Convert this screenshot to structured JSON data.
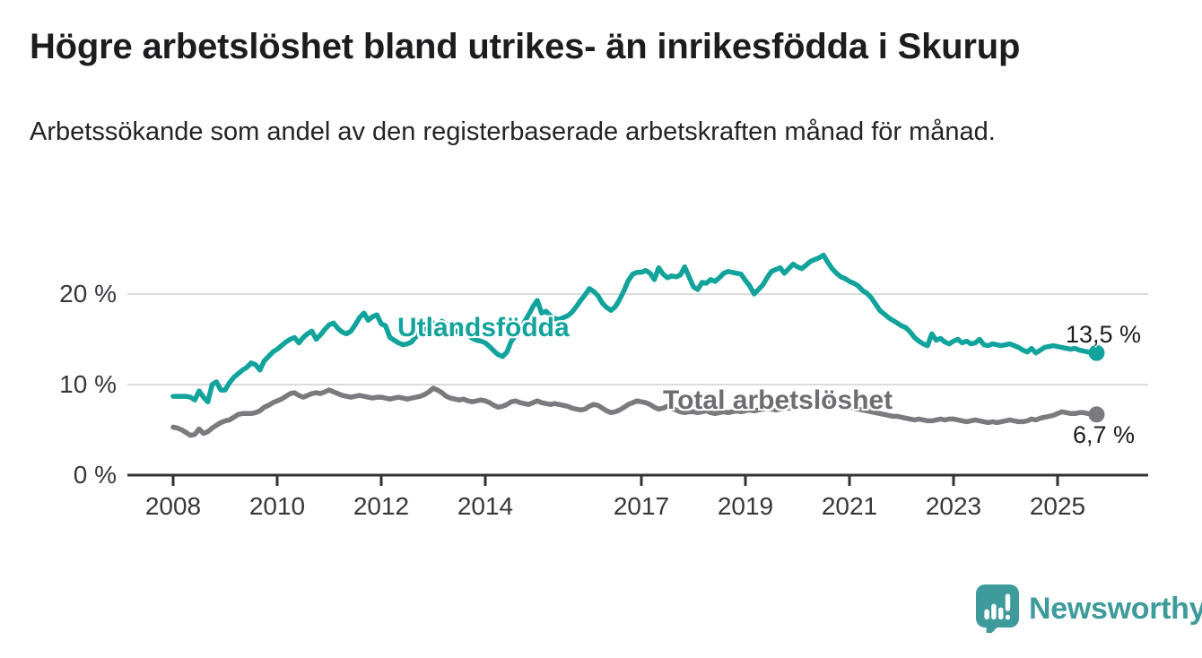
{
  "header": {
    "title": "Högre arbetslöshet bland utrikes- än inrikesfödda i Skurup",
    "subtitle": "Arbetssökande som andel av den registerbaserade arbetskraften månad för månad."
  },
  "logo": {
    "text": "Newsworthy",
    "icon": "newsworthy-speech-bubble-bar-chart-icon",
    "color": "#3f9b9b"
  },
  "chart_data": {
    "type": "line",
    "title": "Högre arbetslöshet bland utrikes- än inrikesfödda i Skurup",
    "subtitle": "Arbetssökande som andel av den registerbaserade arbetskraften månad för månad.",
    "frequency": "monthly",
    "start": "2008-01",
    "end": "2025-10",
    "grid": "horizontal",
    "legend_position": "inline-labels",
    "x_axis": {
      "unit": "year",
      "range": [
        2007.1,
        2026.8
      ],
      "ticks": [
        "2008",
        "2010",
        "2012",
        "2014",
        "2017",
        "2019",
        "2021",
        "2023",
        "2025"
      ]
    },
    "y_axis": {
      "unit": "percent",
      "range": [
        0,
        25
      ],
      "ticks": [
        {
          "value": 0,
          "label": "0 %"
        },
        {
          "value": 10,
          "label": "10 %"
        },
        {
          "value": 20,
          "label": "20 %"
        }
      ]
    },
    "colors": {
      "grid": "#dcdcdc",
      "axis": "#323236",
      "tick_text": "#37373b"
    },
    "series": [
      {
        "name": "Utlandsfödda",
        "color": "#12a39c",
        "end_label": "13,5 %",
        "end_value": 13.5,
        "values": [
          8.7,
          8.7,
          8.7,
          8.7,
          8.6,
          8.3,
          9.3,
          8.6,
          8.1,
          10.0,
          10.3,
          9.4,
          9.4,
          10.2,
          10.8,
          11.2,
          11.6,
          11.9,
          12.4,
          12.2,
          11.6,
          12.6,
          13.1,
          13.6,
          13.9,
          14.3,
          14.7,
          15.0,
          15.2,
          14.6,
          15.2,
          15.6,
          15.9,
          15.0,
          15.5,
          16.1,
          16.6,
          16.8,
          16.2,
          15.8,
          15.6,
          15.9,
          16.6,
          17.4,
          17.9,
          17.1,
          17.5,
          17.7,
          16.7,
          16.5,
          15.2,
          14.9,
          14.6,
          14.4,
          14.5,
          14.7,
          15.3,
          15.8,
          16.1,
          16.4,
          16.8,
          16.6,
          17.0,
          16.7,
          16.3,
          16.0,
          15.7,
          15.9,
          15.5,
          15.1,
          14.9,
          14.8,
          14.6,
          14.2,
          13.7,
          13.3,
          13.1,
          13.6,
          14.8,
          15.4,
          16.1,
          16.9,
          17.7,
          18.6,
          19.3,
          17.9,
          18.1,
          17.6,
          17.3,
          17.2,
          17.4,
          17.6,
          18.0,
          18.6,
          19.3,
          19.9,
          20.6,
          20.3,
          19.8,
          19.0,
          18.5,
          18.2,
          18.6,
          19.4,
          20.4,
          21.5,
          22.2,
          22.4,
          22.4,
          22.6,
          22.3,
          21.6,
          22.9,
          22.2,
          21.8,
          22.0,
          21.9,
          22.1,
          23.0,
          21.9,
          20.8,
          20.5,
          21.3,
          21.2,
          21.6,
          21.4,
          21.8,
          22.3,
          22.5,
          22.4,
          22.3,
          22.2,
          21.5,
          20.9,
          20.0,
          20.5,
          21.0,
          21.8,
          22.5,
          22.7,
          22.9,
          22.3,
          22.8,
          23.3,
          23.0,
          22.8,
          23.2,
          23.6,
          23.8,
          24.0,
          24.3,
          23.5,
          22.8,
          22.3,
          21.9,
          21.7,
          21.4,
          21.2,
          20.9,
          20.4,
          20.1,
          19.6,
          18.9,
          18.2,
          17.8,
          17.4,
          17.1,
          16.8,
          16.5,
          16.3,
          15.8,
          15.2,
          14.8,
          14.5,
          14.3,
          15.6,
          14.9,
          15.1,
          14.7,
          14.5,
          14.8,
          15.0,
          14.6,
          14.8,
          14.5,
          14.6,
          15.0,
          14.4,
          14.3,
          14.5,
          14.4,
          14.3,
          14.4,
          14.5,
          14.3,
          14.1,
          13.8,
          13.6,
          14.0,
          13.5,
          13.8,
          14.1,
          14.2,
          14.3,
          14.2,
          14.1,
          14.0,
          13.9,
          14.0,
          13.8,
          13.7,
          13.6,
          13.5,
          13.5
        ]
      },
      {
        "name": "Total arbetslöshet",
        "color": "#7a7a7f",
        "end_label": "6,7 %",
        "end_value": 6.7,
        "values": [
          5.3,
          5.2,
          5.0,
          4.7,
          4.4,
          4.5,
          5.1,
          4.6,
          4.8,
          5.2,
          5.5,
          5.8,
          6.0,
          6.1,
          6.4,
          6.7,
          6.8,
          6.8,
          6.8,
          6.9,
          7.1,
          7.5,
          7.7,
          8.0,
          8.2,
          8.4,
          8.7,
          9.0,
          9.1,
          8.8,
          8.6,
          8.8,
          9.0,
          9.1,
          9.0,
          9.2,
          9.4,
          9.2,
          9.0,
          8.8,
          8.7,
          8.6,
          8.7,
          8.8,
          8.7,
          8.6,
          8.5,
          8.6,
          8.6,
          8.5,
          8.4,
          8.5,
          8.6,
          8.5,
          8.4,
          8.5,
          8.6,
          8.7,
          8.9,
          9.2,
          9.6,
          9.4,
          9.1,
          8.7,
          8.5,
          8.4,
          8.3,
          8.4,
          8.2,
          8.1,
          8.2,
          8.3,
          8.2,
          8.0,
          7.7,
          7.5,
          7.6,
          7.8,
          8.1,
          8.2,
          8.0,
          7.9,
          7.8,
          8.0,
          8.2,
          8.0,
          7.9,
          7.8,
          7.9,
          7.8,
          7.7,
          7.6,
          7.4,
          7.3,
          7.2,
          7.3,
          7.6,
          7.8,
          7.7,
          7.4,
          7.1,
          6.9,
          7.0,
          7.2,
          7.5,
          7.8,
          8.0,
          8.2,
          8.1,
          8.0,
          7.8,
          7.5,
          7.3,
          7.4,
          7.6,
          7.4,
          7.2,
          7.0,
          6.9,
          7.0,
          7.0,
          6.9,
          7.0,
          7.1,
          6.9,
          6.8,
          6.9,
          7.0,
          6.9,
          7.0,
          7.1,
          7.0,
          7.1,
          7.2,
          7.1,
          7.2,
          7.3,
          7.4,
          7.3,
          7.2,
          7.3,
          7.4,
          7.4,
          7.5,
          7.5,
          7.6,
          7.9,
          8.1,
          8.2,
          8.2,
          8.1,
          8.0,
          7.9,
          7.8,
          7.7,
          7.6,
          7.5,
          7.4,
          7.3,
          7.2,
          7.1,
          7.0,
          6.9,
          6.8,
          6.7,
          6.6,
          6.5,
          6.5,
          6.4,
          6.3,
          6.2,
          6.1,
          6.2,
          6.1,
          6.0,
          6.0,
          6.1,
          6.2,
          6.1,
          6.2,
          6.2,
          6.1,
          6.0,
          5.9,
          6.0,
          6.1,
          6.0,
          5.9,
          5.8,
          5.9,
          5.8,
          5.9,
          6.0,
          6.1,
          6.0,
          5.9,
          5.9,
          6.0,
          6.2,
          6.1,
          6.3,
          6.4,
          6.5,
          6.6,
          6.8,
          7.0,
          6.9,
          6.8,
          6.8,
          6.9,
          6.9,
          6.8,
          6.7,
          6.7
        ]
      }
    ]
  }
}
